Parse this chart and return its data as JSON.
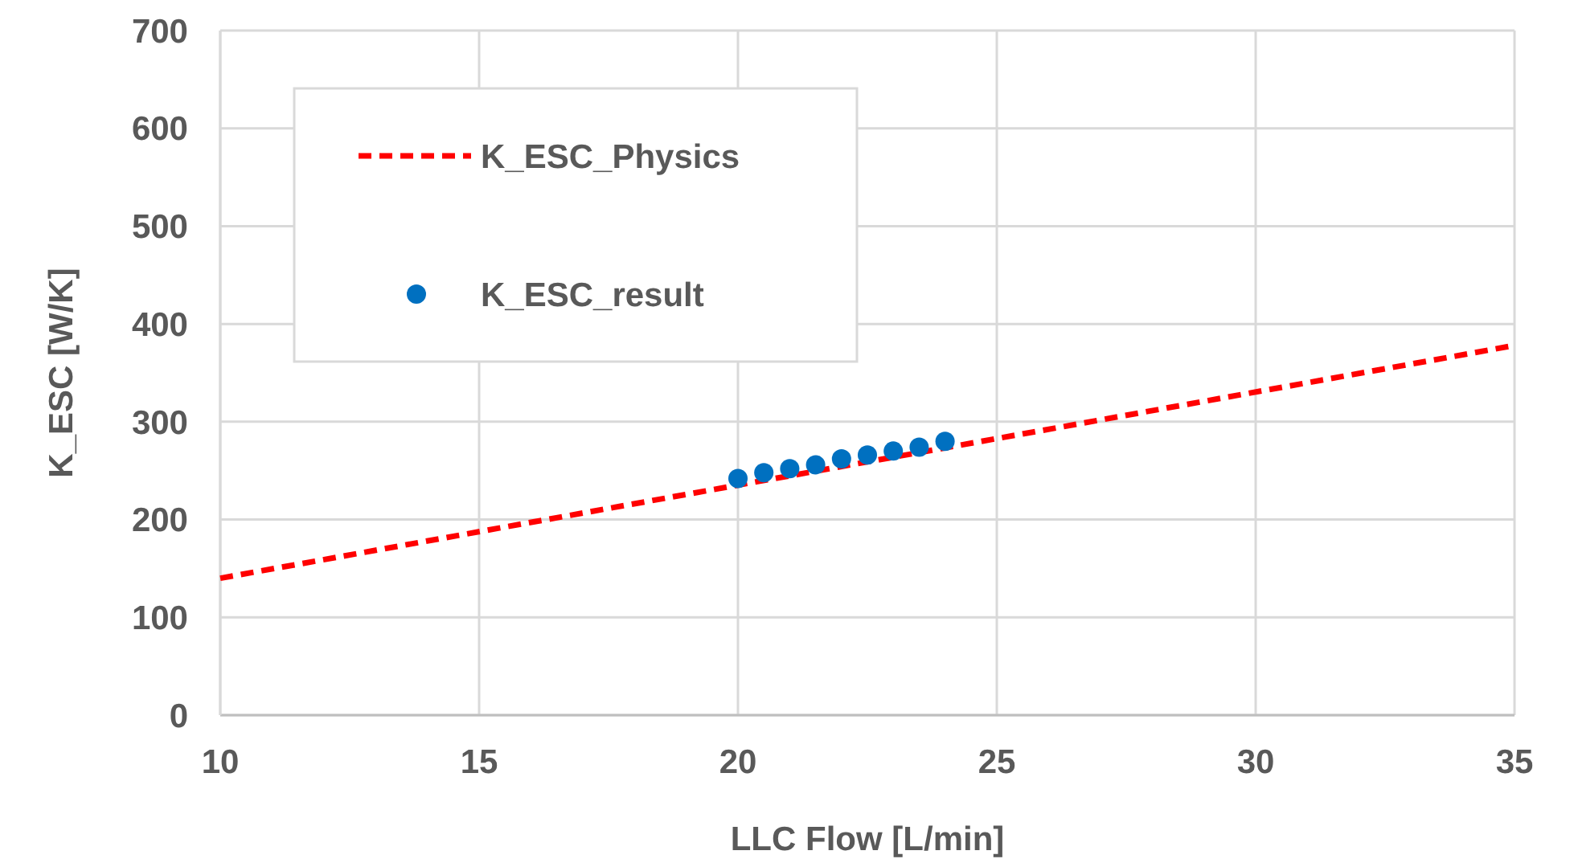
{
  "chart_data": {
    "type": "scatter",
    "xlabel": "LLC Flow [L/min]",
    "ylabel": "K_ESC [W/K]",
    "xlim": [
      10,
      35
    ],
    "xticks": [
      10,
      15,
      20,
      25,
      30,
      35
    ],
    "ylim": [
      0,
      700
    ],
    "yticks": [
      0,
      100,
      200,
      300,
      400,
      500,
      600,
      700
    ],
    "grid": true,
    "legend": "top left",
    "series": [
      {
        "name": "K_ESC_Physics",
        "type": "line",
        "color": "#ff0000",
        "line_style": "dashed",
        "marker": "none",
        "x": [
          10,
          35
        ],
        "values": [
          140,
          378
        ]
      },
      {
        "name": "K_ESC_result",
        "color": "#0070c0",
        "marker": "circle",
        "x": [
          20,
          20.5,
          21,
          21.5,
          22,
          22.5,
          23,
          23.5,
          24
        ],
        "values": [
          242,
          248,
          252,
          256,
          262,
          266,
          270,
          274,
          280
        ]
      }
    ]
  }
}
